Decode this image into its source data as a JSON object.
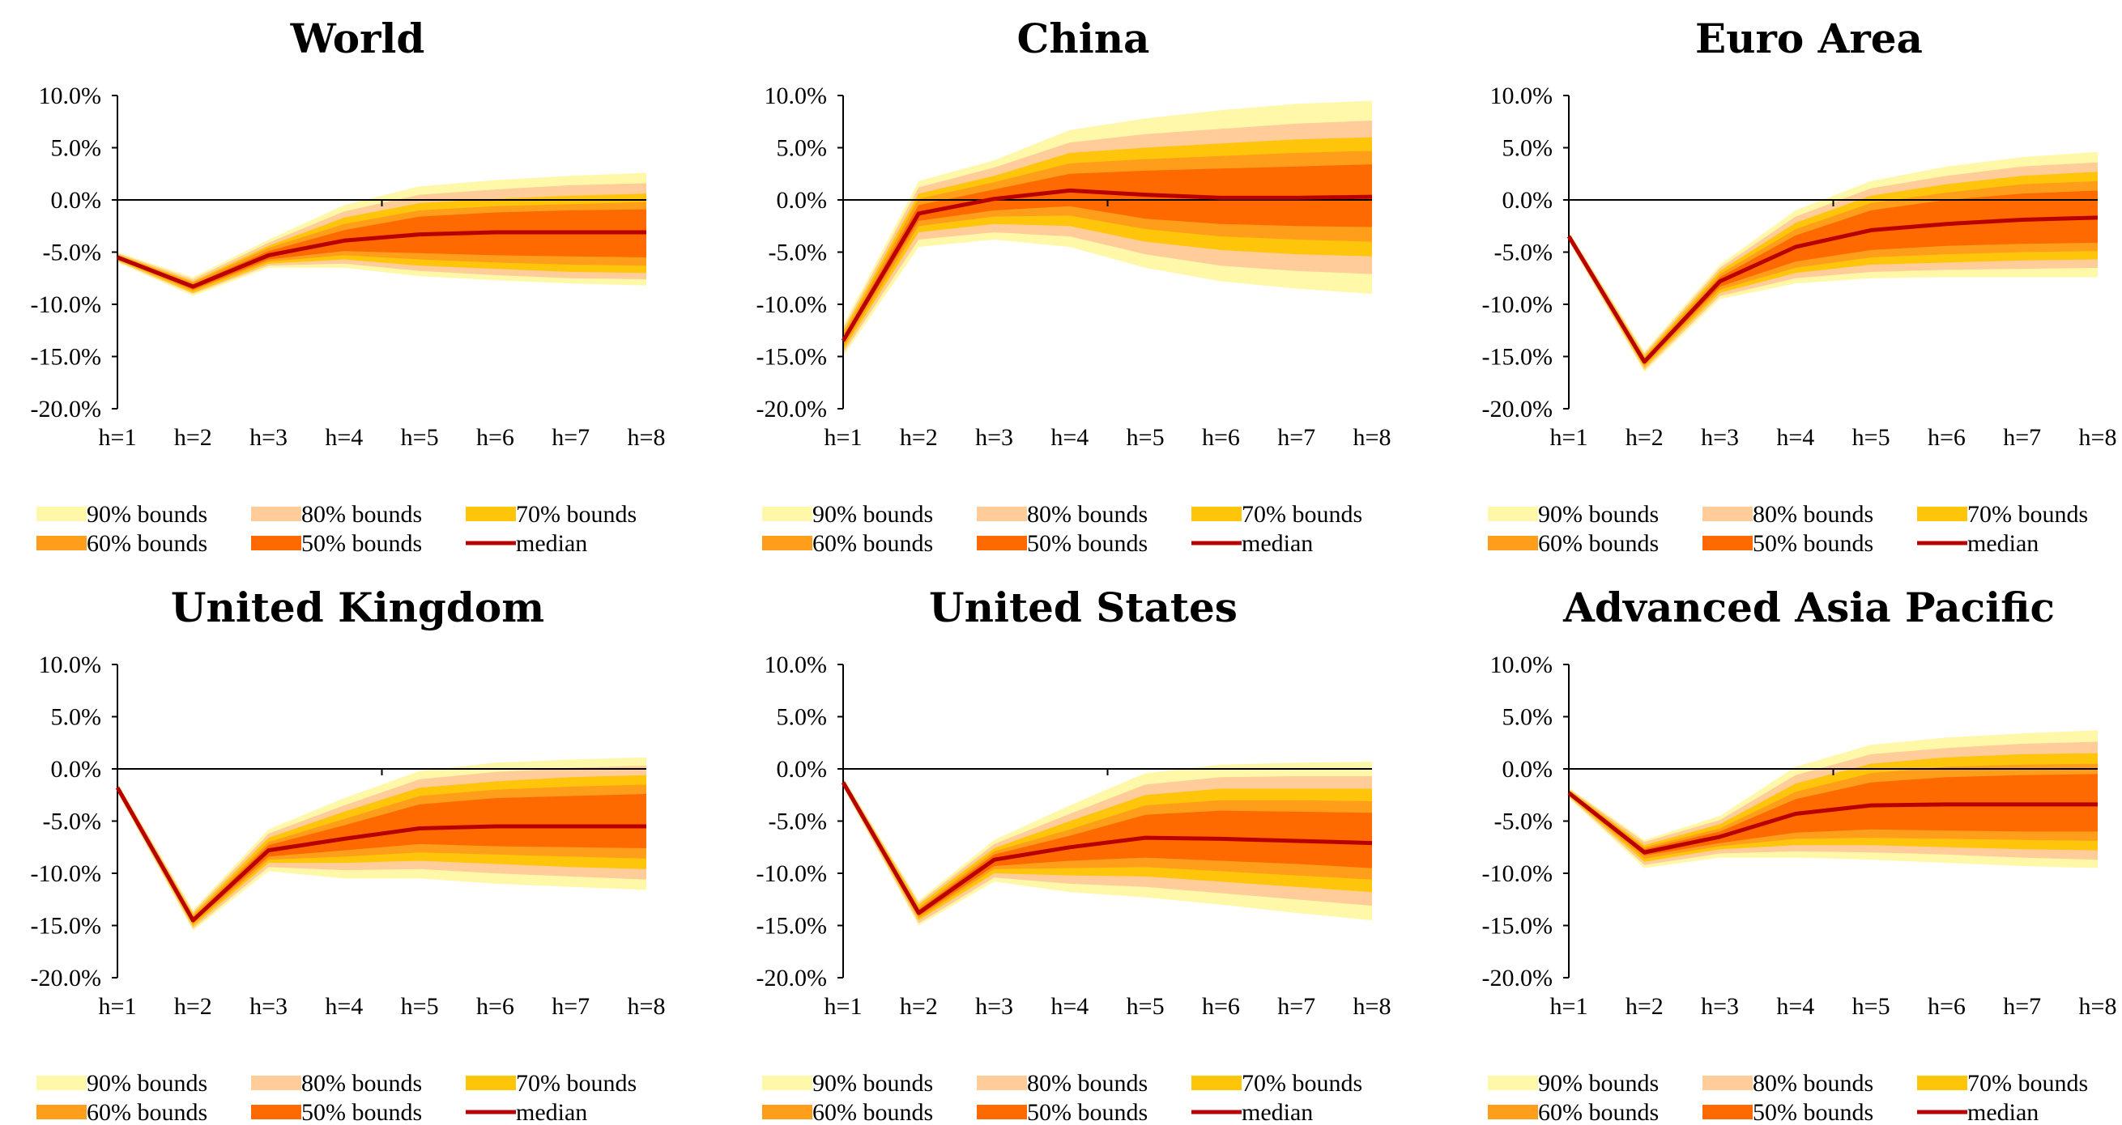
{
  "chart_data": [
    {
      "type": "area",
      "title": "World",
      "categories": [
        "h=1",
        "h=2",
        "h=3",
        "h=4",
        "h=5",
        "h=6",
        "h=7",
        "h=8"
      ],
      "yticks": [
        "10.0%",
        "5.0%",
        "0.0%",
        "-5.0%",
        "-10.0%",
        "-15.0%",
        "-20.0%"
      ],
      "ylim": [
        -20,
        10
      ],
      "legend": [
        "90% bounds",
        "80% bounds",
        "70% bounds",
        "60% bounds",
        "50% bounds",
        "median"
      ],
      "median": [
        -5.5,
        -8.3,
        -5.3,
        -3.9,
        -3.3,
        -3.1,
        -3.1,
        -3.1
      ],
      "bands": {
        "b90": {
          "low": [
            -6.0,
            -9.2,
            -6.5,
            -6.5,
            -7.3,
            -7.7,
            -8.0,
            -8.2
          ],
          "high": [
            -5.0,
            -7.4,
            -3.8,
            -0.5,
            1.3,
            1.9,
            2.3,
            2.6
          ]
        },
        "b80": {
          "low": [
            -5.9,
            -9.0,
            -6.3,
            -6.1,
            -6.8,
            -7.2,
            -7.5,
            -7.6
          ],
          "high": [
            -5.1,
            -7.6,
            -4.1,
            -1.1,
            0.5,
            1.0,
            1.4,
            1.6
          ]
        },
        "b70": {
          "low": [
            -5.8,
            -8.9,
            -6.1,
            -5.7,
            -6.3,
            -6.6,
            -6.9,
            -7.0
          ],
          "high": [
            -5.2,
            -7.8,
            -4.4,
            -1.7,
            -0.3,
            0.1,
            0.4,
            0.6
          ]
        },
        "b60": {
          "low": [
            -5.7,
            -8.7,
            -5.9,
            -5.3,
            -5.7,
            -6.0,
            -6.2,
            -6.3
          ],
          "high": [
            -5.3,
            -7.9,
            -4.6,
            -2.3,
            -1.0,
            -0.6,
            -0.4,
            -0.2
          ]
        },
        "b50": {
          "low": [
            -5.6,
            -8.6,
            -5.7,
            -4.9,
            -5.1,
            -5.3,
            -5.4,
            -5.5
          ],
          "high": [
            -5.4,
            -8.1,
            -4.9,
            -2.9,
            -1.6,
            -1.2,
            -1.0,
            -0.9
          ]
        }
      }
    },
    {
      "type": "area",
      "title": "China",
      "categories": [
        "h=1",
        "h=2",
        "h=3",
        "h=4",
        "h=5",
        "h=6",
        "h=7",
        "h=8"
      ],
      "yticks": [
        "10.0%",
        "5.0%",
        "0.0%",
        "-5.0%",
        "-10.0%",
        "-15.0%",
        "-20.0%"
      ],
      "ylim": [
        -20,
        10
      ],
      "legend": [
        "90% bounds",
        "80% bounds",
        "70% bounds",
        "60% bounds",
        "50% bounds",
        "median"
      ],
      "median": [
        -13.5,
        -1.3,
        0.1,
        0.9,
        0.5,
        0.2,
        0.2,
        0.3
      ],
      "bands": {
        "b90": {
          "low": [
            -15.0,
            -4.5,
            -3.8,
            -4.5,
            -6.5,
            -7.8,
            -8.5,
            -9.0
          ],
          "high": [
            -12.0,
            1.8,
            3.8,
            6.7,
            7.8,
            8.6,
            9.2,
            9.5
          ]
        },
        "b80": {
          "low": [
            -14.7,
            -3.8,
            -3.1,
            -3.5,
            -5.2,
            -6.3,
            -6.8,
            -7.1
          ],
          "high": [
            -12.3,
            1.2,
            3.1,
            5.5,
            6.3,
            6.8,
            7.3,
            7.6
          ]
        },
        "b70": {
          "low": [
            -14.4,
            -3.1,
            -2.3,
            -2.5,
            -4.0,
            -4.8,
            -5.2,
            -5.4
          ],
          "high": [
            -12.6,
            0.6,
            2.3,
            4.5,
            5.0,
            5.4,
            5.8,
            6.0
          ]
        },
        "b60": {
          "low": [
            -14.1,
            -2.5,
            -1.6,
            -1.5,
            -2.8,
            -3.5,
            -3.8,
            -4.0
          ],
          "high": [
            -12.9,
            0.1,
            1.7,
            3.5,
            3.9,
            4.2,
            4.5,
            4.7
          ]
        },
        "b50": {
          "low": [
            -13.8,
            -2.0,
            -1.0,
            -0.6,
            -1.8,
            -2.3,
            -2.5,
            -2.6
          ],
          "high": [
            -13.2,
            -0.5,
            1.0,
            2.5,
            2.8,
            3.0,
            3.2,
            3.4
          ]
        }
      }
    },
    {
      "type": "area",
      "title": "Euro Area",
      "categories": [
        "h=1",
        "h=2",
        "h=3",
        "h=4",
        "h=5",
        "h=6",
        "h=7",
        "h=8"
      ],
      "yticks": [
        "10.0%",
        "5.0%",
        "0.0%",
        "-5.0%",
        "-10.0%",
        "-15.0%",
        "-20.0%"
      ],
      "ylim": [
        -20,
        10
      ],
      "legend": [
        "90% bounds",
        "80% bounds",
        "70% bounds",
        "60% bounds",
        "50% bounds",
        "median"
      ],
      "median": [
        -3.5,
        -15.5,
        -7.8,
        -4.5,
        -2.9,
        -2.3,
        -1.9,
        -1.7
      ],
      "bands": {
        "b90": {
          "low": [
            -4.0,
            -16.5,
            -9.5,
            -8.0,
            -7.5,
            -7.4,
            -7.4,
            -7.4
          ],
          "high": [
            -3.0,
            -14.5,
            -6.2,
            -1.0,
            1.8,
            3.2,
            4.1,
            4.6
          ]
        },
        "b80": {
          "low": [
            -3.9,
            -16.3,
            -9.2,
            -7.5,
            -6.9,
            -6.7,
            -6.6,
            -6.5
          ],
          "high": [
            -3.1,
            -14.7,
            -6.5,
            -1.6,
            1.1,
            2.3,
            3.2,
            3.6
          ]
        },
        "b70": {
          "low": [
            -3.8,
            -16.1,
            -8.9,
            -7.0,
            -6.2,
            -6.0,
            -5.8,
            -5.7
          ],
          "high": [
            -3.2,
            -14.9,
            -6.8,
            -2.2,
            0.4,
            1.5,
            2.3,
            2.7
          ]
        },
        "b60": {
          "low": [
            -3.7,
            -15.9,
            -8.6,
            -6.5,
            -5.5,
            -5.2,
            -5.0,
            -4.9
          ],
          "high": [
            -3.3,
            -15.1,
            -7.1,
            -2.8,
            -0.3,
            0.7,
            1.5,
            1.8
          ]
        },
        "b50": {
          "low": [
            -3.6,
            -15.7,
            -8.3,
            -5.9,
            -4.8,
            -4.4,
            -4.2,
            -4.1
          ],
          "high": [
            -3.4,
            -15.3,
            -7.4,
            -3.4,
            -1.0,
            0.0,
            0.6,
            0.9
          ]
        }
      }
    },
    {
      "type": "area",
      "title": "United Kingdom",
      "categories": [
        "h=1",
        "h=2",
        "h=3",
        "h=4",
        "h=5",
        "h=6",
        "h=7",
        "h=8"
      ],
      "yticks": [
        "10.0%",
        "5.0%",
        "0.0%",
        "-5.0%",
        "-10.0%",
        "-15.0%",
        "-20.0%"
      ],
      "ylim": [
        -20,
        10
      ],
      "legend": [
        "90% bounds",
        "80% bounds",
        "70% bounds",
        "60% bounds",
        "50% bounds",
        "median"
      ],
      "median": [
        -1.8,
        -14.5,
        -7.8,
        -6.7,
        -5.7,
        -5.5,
        -5.5,
        -5.5
      ],
      "bands": {
        "b90": {
          "low": [
            -2.3,
            -15.5,
            -9.8,
            -10.5,
            -10.5,
            -11.0,
            -11.3,
            -11.6
          ],
          "high": [
            -1.3,
            -13.5,
            -5.8,
            -2.8,
            -0.2,
            0.6,
            0.9,
            1.1
          ]
        },
        "b80": {
          "low": [
            -2.2,
            -15.3,
            -9.4,
            -9.7,
            -9.6,
            -10.0,
            -10.3,
            -10.6
          ],
          "high": [
            -1.4,
            -13.7,
            -6.2,
            -3.5,
            -1.0,
            -0.3,
            0.1,
            0.3
          ]
        },
        "b70": {
          "low": [
            -2.1,
            -15.1,
            -9.0,
            -9.0,
            -8.8,
            -9.1,
            -9.4,
            -9.6
          ],
          "high": [
            -1.5,
            -13.9,
            -6.6,
            -4.1,
            -1.8,
            -1.2,
            -0.8,
            -0.6
          ]
        },
        "b60": {
          "low": [
            -2.0,
            -14.9,
            -8.7,
            -8.4,
            -8.0,
            -8.2,
            -8.4,
            -8.6
          ],
          "high": [
            -1.6,
            -14.1,
            -7.0,
            -4.8,
            -2.6,
            -2.0,
            -1.7,
            -1.5
          ]
        },
        "b50": {
          "low": [
            -1.9,
            -14.7,
            -8.4,
            -7.8,
            -7.2,
            -7.4,
            -7.5,
            -7.6
          ],
          "high": [
            -1.7,
            -14.3,
            -7.3,
            -5.4,
            -3.4,
            -2.8,
            -2.6,
            -2.4
          ]
        }
      }
    },
    {
      "type": "area",
      "title": "United States",
      "categories": [
        "h=1",
        "h=2",
        "h=3",
        "h=4",
        "h=5",
        "h=6",
        "h=7",
        "h=8"
      ],
      "yticks": [
        "10.0%",
        "5.0%",
        "0.0%",
        "-5.0%",
        "-10.0%",
        "-15.0%",
        "-20.0%"
      ],
      "ylim": [
        -20,
        10
      ],
      "legend": [
        "90% bounds",
        "80% bounds",
        "70% bounds",
        "60% bounds",
        "50% bounds",
        "median"
      ],
      "median": [
        -1.3,
        -13.8,
        -8.7,
        -7.5,
        -6.6,
        -6.7,
        -6.9,
        -7.1
      ],
      "bands": {
        "b90": {
          "low": [
            -1.8,
            -15.0,
            -10.8,
            -11.8,
            -12.3,
            -13.0,
            -13.8,
            -14.5
          ],
          "high": [
            -0.8,
            -12.6,
            -6.8,
            -3.5,
            -0.4,
            0.4,
            0.6,
            0.7
          ]
        },
        "b80": {
          "low": [
            -1.7,
            -14.8,
            -10.4,
            -11.0,
            -11.3,
            -11.9,
            -12.5,
            -13.1
          ],
          "high": [
            -0.9,
            -12.8,
            -7.2,
            -4.3,
            -1.5,
            -0.8,
            -0.7,
            -0.7
          ]
        },
        "b70": {
          "low": [
            -1.6,
            -14.5,
            -10.0,
            -10.2,
            -10.3,
            -10.8,
            -11.3,
            -11.8
          ],
          "high": [
            -1.0,
            -13.0,
            -7.6,
            -5.0,
            -2.5,
            -1.9,
            -1.9,
            -1.9
          ]
        },
        "b60": {
          "low": [
            -1.5,
            -14.3,
            -9.6,
            -9.5,
            -9.4,
            -9.8,
            -10.2,
            -10.6
          ],
          "high": [
            -1.1,
            -13.3,
            -7.9,
            -5.8,
            -3.5,
            -3.0,
            -3.0,
            -3.1
          ]
        },
        "b50": {
          "low": [
            -1.4,
            -14.1,
            -9.3,
            -8.8,
            -8.5,
            -8.8,
            -9.1,
            -9.5
          ],
          "high": [
            -1.2,
            -13.5,
            -8.2,
            -6.4,
            -4.4,
            -4.0,
            -4.1,
            -4.2
          ]
        }
      }
    },
    {
      "type": "area",
      "title": "Advanced Asia Pacific",
      "categories": [
        "h=1",
        "h=2",
        "h=3",
        "h=4",
        "h=5",
        "h=6",
        "h=7",
        "h=8"
      ],
      "yticks": [
        "10.0%",
        "5.0%",
        "0.0%",
        "-5.0%",
        "-10.0%",
        "-15.0%",
        "-20.0%"
      ],
      "ylim": [
        -20,
        10
      ],
      "legend": [
        "90% bounds",
        "80% bounds",
        "70% bounds",
        "60% bounds",
        "50% bounds",
        "median"
      ],
      "median": [
        -2.3,
        -8.0,
        -6.5,
        -4.3,
        -3.5,
        -3.4,
        -3.4,
        -3.4
      ],
      "bands": {
        "b90": {
          "low": [
            -2.8,
            -9.5,
            -8.5,
            -8.5,
            -8.7,
            -9.0,
            -9.3,
            -9.5
          ],
          "high": [
            -1.8,
            -6.8,
            -4.5,
            0.2,
            2.3,
            3.0,
            3.4,
            3.7
          ]
        },
        "b80": {
          "low": [
            -2.7,
            -9.2,
            -8.1,
            -7.9,
            -8.0,
            -8.2,
            -8.5,
            -8.7
          ],
          "high": [
            -1.9,
            -7.0,
            -4.9,
            -0.6,
            1.4,
            2.0,
            2.4,
            2.6
          ]
        },
        "b70": {
          "low": [
            -2.6,
            -8.9,
            -7.7,
            -7.3,
            -7.3,
            -7.5,
            -7.7,
            -7.8
          ],
          "high": [
            -2.0,
            -7.3,
            -5.3,
            -1.4,
            0.5,
            1.1,
            1.4,
            1.5
          ]
        },
        "b60": {
          "low": [
            -2.5,
            -8.6,
            -7.4,
            -6.7,
            -6.6,
            -6.7,
            -6.8,
            -6.9
          ],
          "high": [
            -2.1,
            -7.5,
            -5.7,
            -2.2,
            -0.4,
            0.2,
            0.4,
            0.5
          ]
        },
        "b50": {
          "low": [
            -2.4,
            -8.3,
            -7.1,
            -6.1,
            -5.8,
            -5.9,
            -6.0,
            -6.0
          ],
          "high": [
            -2.2,
            -7.7,
            -6.0,
            -2.9,
            -1.3,
            -0.8,
            -0.6,
            -0.5
          ]
        }
      }
    }
  ],
  "colors": {
    "b90": "#FFF8A8",
    "b80": "#FFCC9A",
    "b70": "#FFC50A",
    "b60": "#FF9E1A",
    "b50": "#FF6A00",
    "median": "#B80000",
    "axis": "#000000"
  }
}
